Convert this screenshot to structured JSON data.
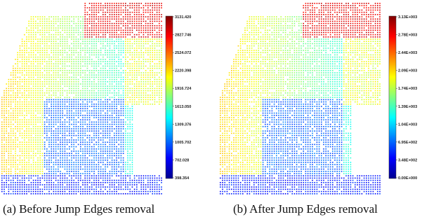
{
  "figure": {
    "colormap": [
      "#00008f",
      "#0000ff",
      "#0080ff",
      "#00ffff",
      "#80ff80",
      "#ffff00",
      "#ff8000",
      "#ff0000",
      "#800000"
    ],
    "panels": [
      {
        "caption": "(a) Before Jump Edges removal",
        "colorbar_ticks": [
          "3131.420",
          "2827.746",
          "2524.072",
          "2220.398",
          "1916.724",
          "1613.050",
          "1309.376",
          "1005.702",
          "702.028",
          "398.354"
        ]
      },
      {
        "caption": "(b) After Jump Edges removal",
        "colorbar_ticks": [
          "3.13E+003",
          "2.78E+003",
          "2.44E+003",
          "2.09E+003",
          "1.74E+003",
          "1.39E+003",
          "1.04E+003",
          "6.95E+002",
          "3.48E+002",
          "0.00E+000"
        ]
      }
    ]
  }
}
